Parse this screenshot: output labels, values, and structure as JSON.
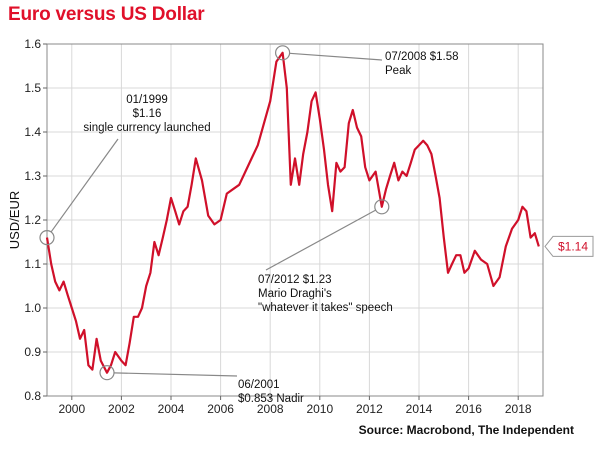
{
  "chart_data": {
    "type": "line",
    "title": "Euro versus US Dollar",
    "source": "Source: Macrobond, The Independent",
    "ylabel": "USD/EUR",
    "xlabel": "",
    "xlim": [
      1999.0,
      2019.0
    ],
    "ylim": [
      0.8,
      1.6
    ],
    "grid": true,
    "x_ticks": [
      2000,
      2002,
      2004,
      2006,
      2008,
      2010,
      2012,
      2014,
      2016,
      2018
    ],
    "x_tick_labels": [
      "2000",
      "2002",
      "2004",
      "2006",
      "2008",
      "2010",
      "2012",
      "2014",
      "2016",
      "2018"
    ],
    "y_ticks": [
      0.8,
      0.9,
      1.0,
      1.1,
      1.2,
      1.3,
      1.4,
      1.5,
      1.6
    ],
    "y_tick_labels": [
      "0.8",
      "0.9",
      "1.0",
      "1.1",
      "1.2",
      "1.3",
      "1.4",
      "1.5",
      "1.6"
    ],
    "line_color": "#d0102a",
    "series": [
      {
        "x": [
          1999.0,
          1999.17,
          1999.33,
          1999.5,
          1999.67,
          1999.83,
          2000.0,
          2000.17,
          2000.33,
          2000.5,
          2000.67,
          2000.83,
          2001.0,
          2001.17,
          2001.42,
          2001.58,
          2001.75,
          2002.0,
          2002.17,
          2002.33,
          2002.5,
          2002.67,
          2002.83,
          2003.0,
          2003.17,
          2003.33,
          2003.5,
          2003.67,
          2003.83,
          2004.0,
          2004.17,
          2004.33,
          2004.5,
          2004.67,
          2004.83,
          2005.0,
          2005.25,
          2005.5,
          2005.75,
          2006.0,
          2006.25,
          2006.5,
          2006.75,
          2007.0,
          2007.25,
          2007.5,
          2007.75,
          2008.0,
          2008.25,
          2008.5,
          2008.67,
          2008.83,
          2009.0,
          2009.17,
          2009.33,
          2009.5,
          2009.67,
          2009.83,
          2010.0,
          2010.17,
          2010.33,
          2010.5,
          2010.67,
          2010.83,
          2011.0,
          2011.17,
          2011.33,
          2011.5,
          2011.67,
          2011.83,
          2012.0,
          2012.25,
          2012.5,
          2012.67,
          2012.83,
          2013.0,
          2013.17,
          2013.33,
          2013.5,
          2013.67,
          2013.83,
          2014.0,
          2014.17,
          2014.33,
          2014.5,
          2014.67,
          2014.83,
          2015.0,
          2015.17,
          2015.33,
          2015.5,
          2015.67,
          2015.83,
          2016.0,
          2016.25,
          2016.5,
          2016.75,
          2017.0,
          2017.25,
          2017.5,
          2017.75,
          2018.0,
          2018.17,
          2018.33,
          2018.5,
          2018.67,
          2018.83
        ],
        "values": [
          1.16,
          1.1,
          1.06,
          1.04,
          1.06,
          1.03,
          1.0,
          0.97,
          0.93,
          0.95,
          0.87,
          0.86,
          0.93,
          0.88,
          0.853,
          0.87,
          0.9,
          0.88,
          0.87,
          0.92,
          0.98,
          0.98,
          1.0,
          1.05,
          1.08,
          1.15,
          1.12,
          1.16,
          1.2,
          1.25,
          1.22,
          1.19,
          1.22,
          1.23,
          1.28,
          1.34,
          1.29,
          1.21,
          1.19,
          1.2,
          1.26,
          1.27,
          1.28,
          1.31,
          1.34,
          1.37,
          1.42,
          1.47,
          1.56,
          1.58,
          1.5,
          1.28,
          1.34,
          1.28,
          1.35,
          1.4,
          1.47,
          1.49,
          1.43,
          1.36,
          1.28,
          1.22,
          1.33,
          1.31,
          1.32,
          1.42,
          1.45,
          1.41,
          1.39,
          1.32,
          1.29,
          1.31,
          1.23,
          1.27,
          1.3,
          1.33,
          1.29,
          1.31,
          1.3,
          1.33,
          1.36,
          1.37,
          1.38,
          1.37,
          1.35,
          1.3,
          1.25,
          1.16,
          1.08,
          1.1,
          1.12,
          1.12,
          1.08,
          1.09,
          1.13,
          1.11,
          1.1,
          1.05,
          1.07,
          1.14,
          1.18,
          1.2,
          1.23,
          1.22,
          1.16,
          1.17,
          1.14
        ]
      }
    ],
    "current_label": "$1.14",
    "annotations": [
      {
        "lines": [
          "01/1999",
          "$1.16",
          "single currency launched"
        ],
        "x": 1999.0,
        "y": 1.16
      },
      {
        "lines": [
          "07/2008  $1.58",
          "Peak"
        ],
        "x": 2008.5,
        "y": 1.58
      },
      {
        "lines": [
          "07/2012  $1.23",
          "Mario Draghi's",
          "\"whatever it takes\" speech"
        ],
        "x": 2012.5,
        "y": 1.23
      },
      {
        "lines": [
          "06/2001",
          "$0.853 Nadir"
        ],
        "x": 2001.42,
        "y": 0.853
      }
    ]
  }
}
